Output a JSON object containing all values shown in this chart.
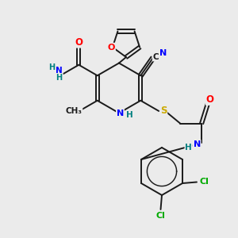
{
  "bg_color": "#ebebeb",
  "atom_colors": {
    "C": "#1a1a1a",
    "N": "#0000ff",
    "O": "#ff0000",
    "S": "#ccaa00",
    "Cl": "#00aa00",
    "H": "#008080"
  },
  "bond_color": "#1a1a1a",
  "bond_width": 1.4
}
